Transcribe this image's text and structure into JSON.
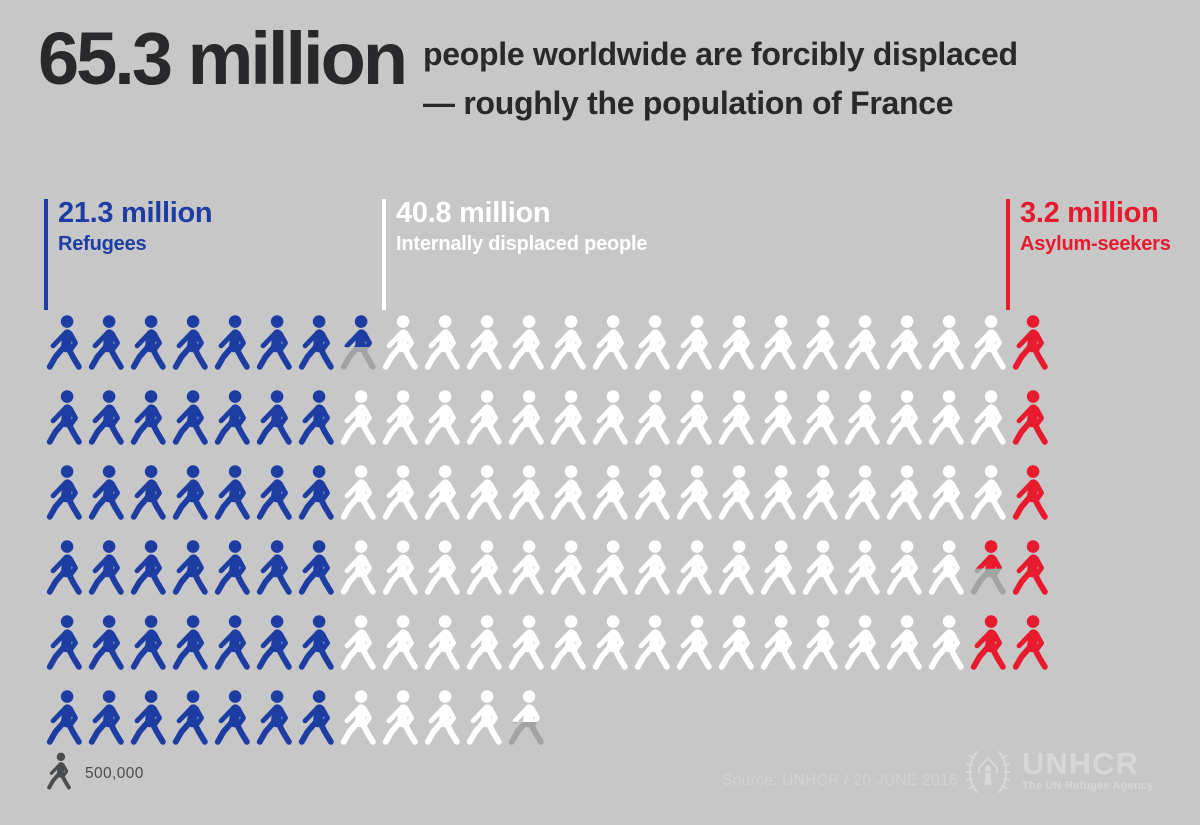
{
  "header": {
    "big_number": "65.3 million",
    "subtitle_line1": "people worldwide are forcibly displaced",
    "subtitle_line2": "— roughly the population of France",
    "text_color": "#29292b"
  },
  "legends": [
    {
      "id": "refugees",
      "value": "21.3 million",
      "label": "Refugees",
      "color": "#1d3da3"
    },
    {
      "id": "idp",
      "value": "40.8 million",
      "label": "Internally displaced people",
      "color": "#ffffff"
    },
    {
      "id": "asylum",
      "value": "3.2 million",
      "label": "Asylum-seekers",
      "color": "#e81a2d"
    }
  ],
  "footer": {
    "unit_label": "500,000",
    "source": "Source: UNHCR / 20 JUNE 2016",
    "logo_title": "UNHCR",
    "logo_subtitle": "The UN Refugee Agency"
  },
  "colors": {
    "background": "#c7c7c8",
    "blue": "#1d3da3",
    "white": "#ffffff",
    "red": "#e81a2d",
    "gray": "#a2a3a5",
    "footer_dark": "#4b4c4e",
    "footer_light": "#d7d7d8"
  },
  "icon": "walking-person-icon",
  "chart_data": {
    "type": "pictogram",
    "title": "65.3 million people worldwide are forcibly displaced — roughly the population of France",
    "total": {
      "label": "65.3 million",
      "value": 65300000
    },
    "unit_per_icon": 500000,
    "unit_label": "500,000",
    "legend_position": "above-grid",
    "series": [
      {
        "name": "Refugees",
        "value": 21300000,
        "value_label": "21.3 million",
        "color": "#1d3da3",
        "icons_full": 42,
        "icon_partial": 0.6
      },
      {
        "name": "Internally displaced people",
        "value": 40800000,
        "value_label": "40.8 million",
        "color": "#ffffff",
        "icons_full": 81,
        "icon_partial": 0.6
      },
      {
        "name": "Asylum-seekers",
        "value": 3200000,
        "value_label": "3.2 million",
        "color": "#e81a2d",
        "icons_full": 6,
        "icon_partial": 0.4
      }
    ],
    "grid_rows": [
      [
        {
          "c": "blue",
          "n": 7
        },
        {
          "c": "blue",
          "partial": 0.6,
          "fill_pct": 58
        },
        {
          "c": "white",
          "n": 15
        },
        {
          "c": "red",
          "n": 1
        }
      ],
      [
        {
          "c": "blue",
          "n": 7
        },
        {
          "c": "white",
          "n": 16
        },
        {
          "c": "red",
          "n": 1
        }
      ],
      [
        {
          "c": "blue",
          "n": 7
        },
        {
          "c": "white",
          "n": 16
        },
        {
          "c": "red",
          "n": 1
        }
      ],
      [
        {
          "c": "blue",
          "n": 7
        },
        {
          "c": "white",
          "n": 15
        },
        {
          "c": "red",
          "partial": 0.4,
          "fill_pct": 52
        },
        {
          "c": "red",
          "n": 1
        }
      ],
      [
        {
          "c": "blue",
          "n": 7
        },
        {
          "c": "white",
          "n": 15
        },
        {
          "c": "red",
          "n": 2
        }
      ],
      [
        {
          "c": "blue",
          "n": 7
        },
        {
          "c": "white",
          "n": 4
        },
        {
          "c": "white",
          "partial": 0.6,
          "fill_pct": 58
        }
      ]
    ]
  }
}
